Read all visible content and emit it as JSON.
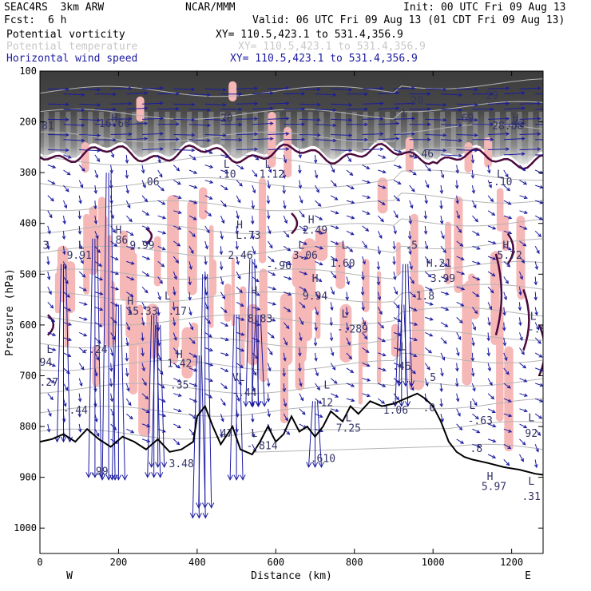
{
  "header": {
    "model": "SEAC4RS  3km ARW",
    "org": "NCAR/MMM",
    "init": "Init: 00 UTC Fri 09 Aug 13",
    "fcst_label": "Fcst:",
    "fcst_value": "6 h",
    "valid": "Valid: 06 UTC Fri 09 Aug 13 (01 CDT Fri 09 Aug 13)",
    "fields": [
      {
        "name": "Potential vorticity",
        "xy": "XY= 110.5,423.1 to 531.4,356.9"
      },
      {
        "name": "Potential temperature",
        "xy": "XY= 110.5,423.1 to 531.4,356.9"
      },
      {
        "name": "Horizontal wind speed",
        "xy": "XY= 110.5,423.1 to 531.4,356.9"
      }
    ]
  },
  "colors": {
    "pv_contour": "#4a0a3c",
    "pv_fill": "#f6b7b7",
    "theta": "#b4b4b4",
    "wind": "#1a1aa0",
    "terrain": "#000000",
    "theta_label": "#c8c8c8"
  },
  "chart_data": {
    "type": "cross-section",
    "title": "",
    "xlabel": "Distance (km)",
    "ylabel": "Pressure (hPa)",
    "xlim": [
      0,
      1280
    ],
    "ylim": [
      1050,
      100
    ],
    "x_ticks": [
      0,
      200,
      400,
      600,
      800,
      1000,
      1200
    ],
    "y_ticks": [
      100,
      200,
      300,
      400,
      500,
      600,
      700,
      800,
      900,
      1000
    ],
    "x_end_labels": {
      "left": "W",
      "right": "E"
    },
    "terrain_surface": [
      [
        0,
        830
      ],
      [
        30,
        825
      ],
      [
        60,
        815
      ],
      [
        90,
        830
      ],
      [
        120,
        805
      ],
      [
        150,
        825
      ],
      [
        180,
        840
      ],
      [
        210,
        820
      ],
      [
        240,
        830
      ],
      [
        270,
        845
      ],
      [
        300,
        825
      ],
      [
        330,
        850
      ],
      [
        360,
        845
      ],
      [
        390,
        830
      ],
      [
        400,
        780
      ],
      [
        420,
        760
      ],
      [
        440,
        800
      ],
      [
        460,
        835
      ],
      [
        490,
        800
      ],
      [
        510,
        845
      ],
      [
        540,
        855
      ],
      [
        560,
        830
      ],
      [
        580,
        800
      ],
      [
        600,
        830
      ],
      [
        620,
        815
      ],
      [
        640,
        780
      ],
      [
        660,
        810
      ],
      [
        680,
        800
      ],
      [
        700,
        820
      ],
      [
        720,
        800
      ],
      [
        740,
        770
      ],
      [
        770,
        790
      ],
      [
        790,
        760
      ],
      [
        810,
        775
      ],
      [
        840,
        750
      ],
      [
        870,
        760
      ],
      [
        900,
        755
      ],
      [
        930,
        745
      ],
      [
        960,
        735
      ],
      [
        980,
        745
      ],
      [
        1000,
        760
      ],
      [
        1020,
        790
      ],
      [
        1040,
        830
      ],
      [
        1060,
        850
      ],
      [
        1080,
        860
      ],
      [
        1100,
        865
      ],
      [
        1140,
        872
      ],
      [
        1180,
        880
      ],
      [
        1220,
        885
      ],
      [
        1260,
        893
      ],
      [
        1280,
        895
      ]
    ],
    "pv_labels": [
      {
        "x": 190,
        "p": 200,
        "text": "H"
      },
      {
        "x": 190,
        "p": 210,
        "text": "16.60"
      },
      {
        "x": 475,
        "p": 200,
        "text": "20"
      },
      {
        "x": 960,
        "p": 165,
        "text": "20"
      },
      {
        "x": 1080,
        "p": 200,
        "text": ".69"
      },
      {
        "x": 1150,
        "p": 155,
        "text": "29"
      },
      {
        "x": 1210,
        "p": 200,
        "text": "H"
      },
      {
        "x": 1210,
        "p": 210,
        "text": ".42"
      },
      {
        "x": 1190,
        "p": 215,
        "text": "28.88"
      },
      {
        "x": 20,
        "p": 215,
        "text": "81"
      },
      {
        "x": 925,
        "p": 190,
        "text": "1"
      },
      {
        "x": 970,
        "p": 270,
        "text": "5.46"
      },
      {
        "x": 475,
        "p": 290,
        "text": "L"
      },
      {
        "x": 475,
        "p": 310,
        "text": ".10"
      },
      {
        "x": 580,
        "p": 290,
        "text": "L"
      },
      {
        "x": 590,
        "p": 310,
        "text": "1.12"
      },
      {
        "x": 280,
        "p": 325,
        "text": ".06"
      },
      {
        "x": 1170,
        "p": 310,
        "text": "L"
      },
      {
        "x": 1170,
        "p": 325,
        "text": "-.10"
      },
      {
        "x": 200,
        "p": 420,
        "text": "H"
      },
      {
        "x": 200,
        "p": 440,
        "text": ".86"
      },
      {
        "x": 260,
        "p": 450,
        "text": "9.99"
      },
      {
        "x": 105,
        "p": 450,
        "text": "L"
      },
      {
        "x": 100,
        "p": 470,
        "text": "9.91"
      },
      {
        "x": 15,
        "p": 450,
        "text": "3"
      },
      {
        "x": 508,
        "p": 410,
        "text": "H"
      },
      {
        "x": 530,
        "p": 430,
        "text": "L.73"
      },
      {
        "x": 510,
        "p": 470,
        "text": "2.46"
      },
      {
        "x": 690,
        "p": 400,
        "text": "H"
      },
      {
        "x": 700,
        "p": 420,
        "text": "2.49"
      },
      {
        "x": 665,
        "p": 450,
        "text": "L"
      },
      {
        "x": 675,
        "p": 470,
        "text": "3.06"
      },
      {
        "x": 608,
        "p": 490,
        "text": "-.96"
      },
      {
        "x": 775,
        "p": 450,
        "text": "L"
      },
      {
        "x": 770,
        "p": 485,
        "text": "1.60"
      },
      {
        "x": 945,
        "p": 450,
        "text": ".5"
      },
      {
        "x": 1185,
        "p": 450,
        "text": "H"
      },
      {
        "x": 1195,
        "p": 470,
        "text": "5.72"
      },
      {
        "x": 1015,
        "p": 485,
        "text": "H.21"
      },
      {
        "x": 1025,
        "p": 515,
        "text": "3.99"
      },
      {
        "x": 230,
        "p": 560,
        "text": "H"
      },
      {
        "x": 260,
        "p": 580,
        "text": "15.33"
      },
      {
        "x": 325,
        "p": 550,
        "text": "L"
      },
      {
        "x": 350,
        "p": 580,
        "text": ".17"
      },
      {
        "x": 700,
        "p": 515,
        "text": "H"
      },
      {
        "x": 700,
        "p": 550,
        "text": "9.94"
      },
      {
        "x": 545,
        "p": 540,
        "text": "H"
      },
      {
        "x": 560,
        "p": 595,
        "text": "8.83"
      },
      {
        "x": 775,
        "p": 585,
        "text": "L"
      },
      {
        "x": 795,
        "p": 615,
        "text": "-.289"
      },
      {
        "x": 980,
        "p": 550,
        "text": "1.8"
      },
      {
        "x": 1255,
        "p": 590,
        "text": "L"
      },
      {
        "x": 1265,
        "p": 615,
        "text": "-.6"
      },
      {
        "x": 140,
        "p": 655,
        "text": "-.24"
      },
      {
        "x": 25,
        "p": 655,
        "text": "L"
      },
      {
        "x": 15,
        "p": 680,
        "text": "94"
      },
      {
        "x": 15,
        "p": 720,
        "text": "2.27"
      },
      {
        "x": 355,
        "p": 665,
        "text": "H"
      },
      {
        "x": 355,
        "p": 683,
        "text": "1.42"
      },
      {
        "x": 355,
        "p": 725,
        "text": ".35"
      },
      {
        "x": 925,
        "p": 650,
        "text": "L"
      },
      {
        "x": 920,
        "p": 688,
        "text": ".46"
      },
      {
        "x": 1000,
        "p": 710,
        "text": "5"
      },
      {
        "x": 505,
        "p": 710,
        "text": "VL"
      },
      {
        "x": 520,
        "p": 740,
        "text": "-.44"
      },
      {
        "x": 730,
        "p": 725,
        "text": "L"
      },
      {
        "x": 730,
        "p": 760,
        "text": "12"
      },
      {
        "x": 90,
        "p": 775,
        "text": "-.44"
      },
      {
        "x": 905,
        "p": 775,
        "text": "1.06"
      },
      {
        "x": 990,
        "p": 770,
        "text": ".0"
      },
      {
        "x": 1100,
        "p": 765,
        "text": "L"
      },
      {
        "x": 1120,
        "p": 795,
        "text": "-.63"
      },
      {
        "x": 785,
        "p": 790,
        "text": "L"
      },
      {
        "x": 785,
        "p": 810,
        "text": "7.25"
      },
      {
        "x": 1250,
        "p": 790,
        "text": "L"
      },
      {
        "x": 1250,
        "p": 820,
        "text": "92"
      },
      {
        "x": 475,
        "p": 820,
        "text": "47"
      },
      {
        "x": 545,
        "p": 820,
        "text": "L"
      },
      {
        "x": 565,
        "p": 845,
        "text": "-.814"
      },
      {
        "x": 360,
        "p": 880,
        "text": "3.48"
      },
      {
        "x": 720,
        "p": 870,
        "text": ".610"
      },
      {
        "x": 1110,
        "p": 850,
        "text": ".8"
      },
      {
        "x": 1145,
        "p": 905,
        "text": "H"
      },
      {
        "x": 1155,
        "p": 925,
        "text": "5.97"
      },
      {
        "x": 150,
        "p": 895,
        "text": ".99"
      },
      {
        "x": 1250,
        "p": 915,
        "text": "L"
      },
      {
        "x": 1250,
        "p": 945,
        "text": ".31"
      }
    ]
  }
}
